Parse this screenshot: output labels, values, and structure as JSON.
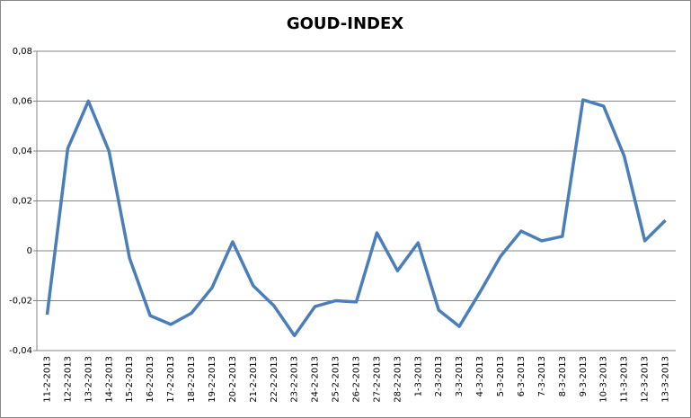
{
  "chart_data": {
    "type": "line",
    "title": "GOUD-INDEX",
    "categories": [
      "11-2-2013",
      "12-2-2013",
      "13-2-2013",
      "14-2-2013",
      "15-2-2013",
      "16-2-2013",
      "17-2-2013",
      "18-2-2013",
      "19-2-2013",
      "20-2-2013",
      "21-2-2013",
      "22-2-2013",
      "23-2-2013",
      "24-2-2013",
      "25-2-2013",
      "26-2-2013",
      "27-2-2013",
      "28-2-2013",
      "1-3-2013",
      "2-3-2013",
      "3-3-2013",
      "4-3-2013",
      "5-3-2013",
      "6-3-2013",
      "7-3-2013",
      "8-3-2013",
      "9-3-2013",
      "10-3-2013",
      "11-3-2013",
      "12-3-2013",
      "13-3-2013"
    ],
    "values": [
      -0.0256,
      0.041,
      0.06,
      0.04,
      -0.003,
      -0.026,
      -0.0295,
      -0.025,
      -0.0148,
      0.0036,
      -0.014,
      -0.022,
      -0.034,
      -0.0223,
      -0.02,
      -0.0205,
      0.0072,
      -0.008,
      0.0032,
      -0.0238,
      -0.0303,
      -0.0166,
      -0.0022,
      0.0079,
      0.004,
      0.0058,
      0.0605,
      0.058,
      0.038,
      0.004,
      0.0122
    ],
    "color": "#4a7ebb",
    "ylim": [
      -0.04,
      0.08
    ],
    "yticks": [
      {
        "value": -0.04,
        "label": "-0,04"
      },
      {
        "value": -0.02,
        "label": "-0,02"
      },
      0,
      {
        "value": 0.02,
        "label": "0,02"
      },
      {
        "value": 0.04,
        "label": "0,04"
      },
      {
        "value": 0.06,
        "label": "0,06"
      },
      {
        "value": 0.08,
        "label": "0,08"
      }
    ],
    "grid": true
  }
}
